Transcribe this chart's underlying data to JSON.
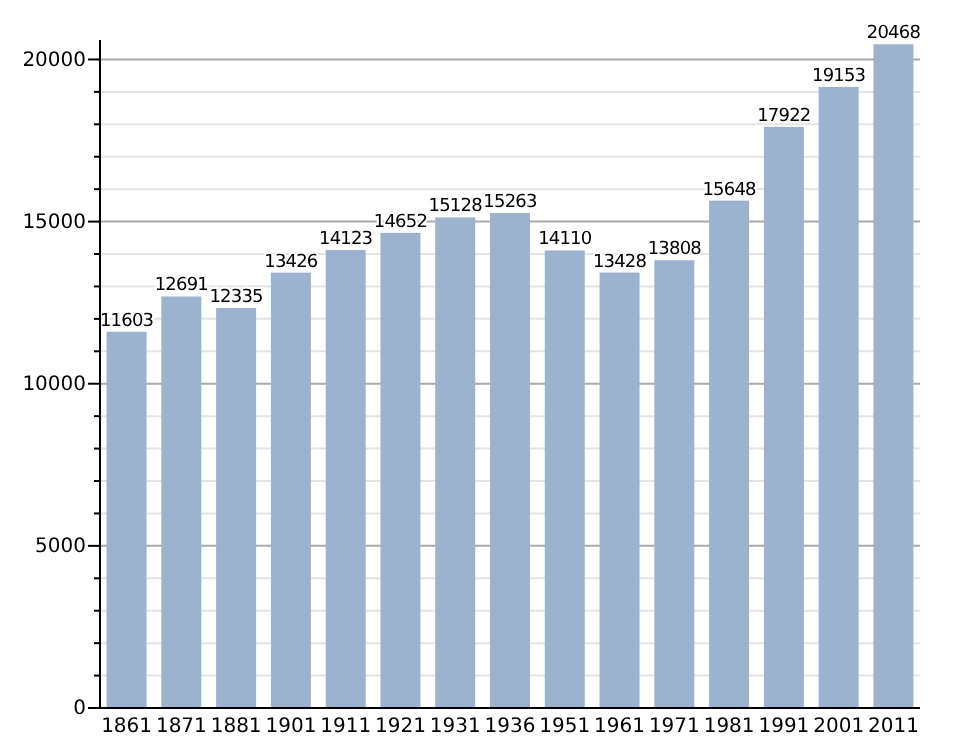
{
  "chart_data": {
    "type": "bar",
    "categories": [
      "1861",
      "1871",
      "1881",
      "1901",
      "1911",
      "1921",
      "1931",
      "1936",
      "1951",
      "1961",
      "1971",
      "1981",
      "1991",
      "2001",
      "2011"
    ],
    "values": [
      11603,
      12691,
      12335,
      13426,
      14123,
      14652,
      15128,
      15263,
      14110,
      13428,
      13808,
      15648,
      17922,
      19153,
      20468
    ],
    "color": "#9bb3cf",
    "data_labels": true,
    "grid": "y",
    "ylim": [
      0,
      20600
    ],
    "yticks": [
      0,
      {
        "value": 1000,
        "label": null
      },
      {
        "value": 2000,
        "label": null
      },
      {
        "value": 3000,
        "label": null
      },
      {
        "value": 4000,
        "label": null
      },
      5000,
      {
        "value": 6000,
        "label": null
      },
      {
        "value": 7000,
        "label": null
      },
      {
        "value": 8000,
        "label": null
      },
      {
        "value": 9000,
        "label": null
      },
      10000,
      {
        "value": 11000,
        "label": null
      },
      {
        "value": 12000,
        "label": null
      },
      {
        "value": 13000,
        "label": null
      },
      {
        "value": 14000,
        "label": null
      },
      15000,
      {
        "value": 16000,
        "label": null
      },
      {
        "value": 17000,
        "label": null
      },
      {
        "value": 18000,
        "label": null
      },
      {
        "value": 19000,
        "label": null
      },
      20000
    ]
  }
}
